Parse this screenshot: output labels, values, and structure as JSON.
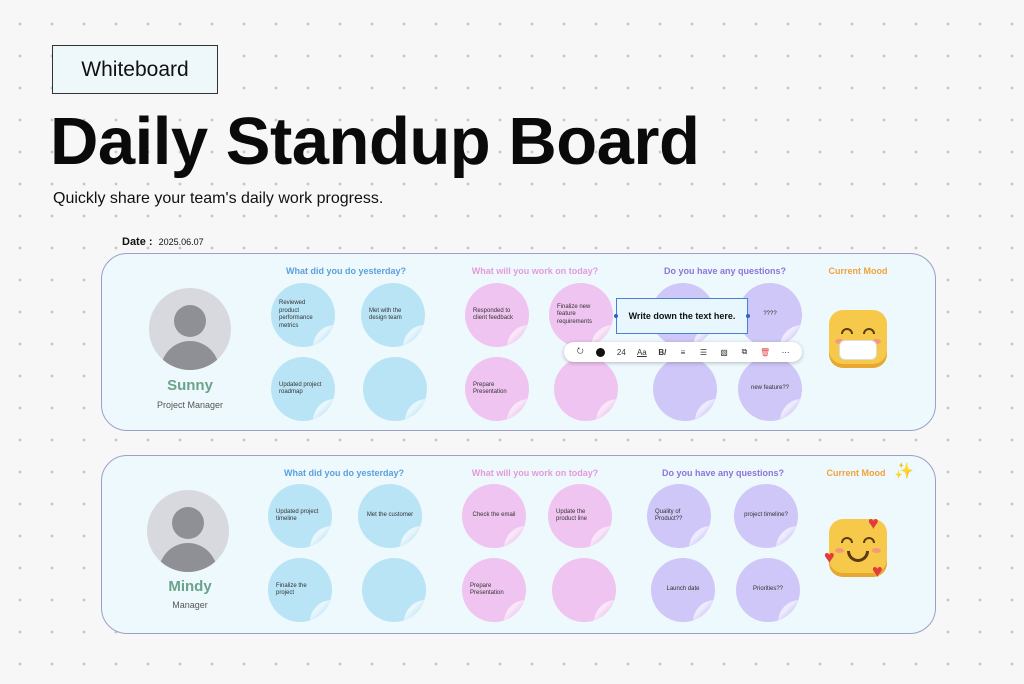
{
  "tag": "Whiteboard",
  "title": "Daily Standup Board",
  "subtitle": "Quickly share your team's daily work progress.",
  "date": {
    "label": "Date :",
    "value": "2025.06.07"
  },
  "headers": {
    "yesterday": "What did you do yesterday?",
    "today": "What will you work on today?",
    "questions": "Do you have any questions?",
    "mood": "Current Mood"
  },
  "members": [
    {
      "name": "Sunny",
      "role": "Project Manager",
      "yesterday": [
        "Reviewed product performance metrics",
        "Met with the design team",
        "Updated project roadmap",
        ""
      ],
      "today": [
        "Responded to client feedback",
        "Finalize new feature requirements",
        "Prepare Presentation",
        ""
      ],
      "questions": [
        "",
        "????",
        "",
        "new feature??"
      ]
    },
    {
      "name": "Mindy",
      "role": "Manager",
      "yesterday": [
        "Updated project timeline",
        "Met the customer",
        "Finalize the project",
        ""
      ],
      "today": [
        "Check the email",
        "Update the product line",
        "Prepare Presentation",
        ""
      ],
      "questions": [
        "Quality of Product??",
        "project timeline?",
        "Launch date",
        "Priorities??"
      ]
    }
  ],
  "editor": {
    "textbox": "Write down the text here.",
    "font_size": "24",
    "toolbar_icons": [
      "paint-bucket-icon",
      "color-dot-icon",
      "font-size-icon",
      "text-style-icon",
      "bold-italic-icon",
      "align-icon",
      "list-icon",
      "border-icon",
      "copy-icon",
      "delete-icon",
      "more-icon"
    ],
    "font_style_label": "Aa",
    "bold_label": "B/"
  }
}
